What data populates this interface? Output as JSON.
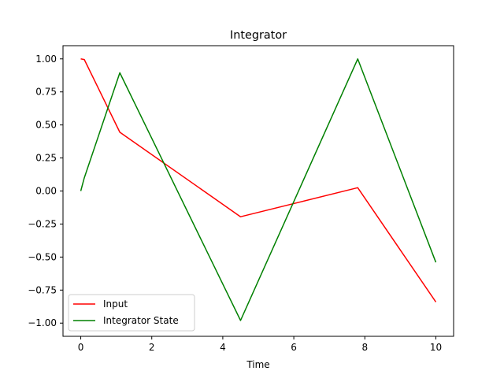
{
  "chart_data": {
    "type": "line",
    "title": "Integrator",
    "xlabel": "Time",
    "ylabel": "",
    "xlim": [
      -0.5,
      10.5
    ],
    "ylim": [
      -1.1,
      1.1
    ],
    "xticks": [
      0,
      2,
      4,
      6,
      8,
      10
    ],
    "xtick_labels": [
      "0",
      "2",
      "4",
      "6",
      "8",
      "10"
    ],
    "yticks": [
      1.0,
      0.75,
      0.5,
      0.25,
      0.0,
      -0.25,
      -0.5,
      -0.75,
      -1.0
    ],
    "ytick_labels": [
      "1.00",
      "0.75",
      "0.50",
      "0.25",
      "0.00",
      "−0.25",
      "−0.50",
      "−0.75",
      "−1.00"
    ],
    "grid": false,
    "legend_position": "lower-left",
    "series": [
      {
        "name": "Input",
        "color": "#ff0000",
        "x": [
          0.0,
          0.1,
          1.1,
          4.5,
          7.8,
          10.0
        ],
        "y": [
          1.0,
          0.995,
          0.445,
          -0.195,
          0.025,
          -0.84
        ]
      },
      {
        "name": "Integrator State",
        "color": "#008000",
        "x": [
          0.0,
          0.1,
          1.1,
          4.5,
          7.8,
          10.0
        ],
        "y": [
          0.0,
          0.1,
          0.895,
          -0.98,
          1.0,
          -0.54
        ]
      }
    ]
  }
}
